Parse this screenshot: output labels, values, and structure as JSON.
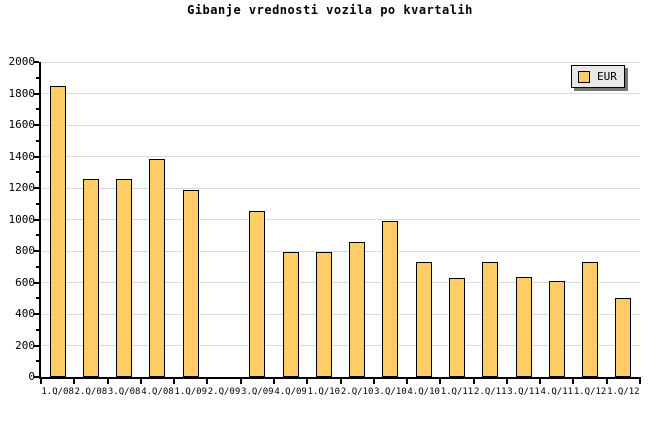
{
  "chart_data": {
    "type": "bar",
    "title": "Gibanje vrednosti vozila po kvartalih",
    "categories": [
      "1.Q/08",
      "2.Q/08",
      "3.Q/08",
      "4.Q/08",
      "1.Q/09",
      "2.Q/09",
      "3.Q/09",
      "4.Q/09",
      "1.Q/10",
      "2.Q/10",
      "3.Q/10",
      "4.Q/10",
      "1.Q/11",
      "2.Q/11",
      "3.Q/11",
      "4.Q/11",
      "1.Q/12",
      "1.Q/12"
    ],
    "series": [
      {
        "name": "EUR",
        "values": [
          1845,
          1255,
          1255,
          1385,
          1190,
          null,
          1055,
          795,
          795,
          860,
          990,
          730,
          630,
          730,
          635,
          610,
          730,
          500
        ]
      }
    ],
    "xlabel": "",
    "ylabel": "",
    "ylim": [
      0,
      2000
    ],
    "ytick_step": 200,
    "yminor_tick_step": 100,
    "ytick_labels": [
      "0",
      "200",
      "400",
      "600",
      "800",
      "1000",
      "1200",
      "1400",
      "1600",
      "1800",
      "2000"
    ],
    "grid": "horizontal",
    "legend": {
      "position": "top-right",
      "entries": [
        {
          "label": "EUR",
          "swatch_color": "#FFCC66"
        }
      ]
    },
    "colors": {
      "bar_fill": "#FFCC66",
      "bar_border": "#000000",
      "grid": "#DCDCDC",
      "axis": "#000000",
      "text": "#000000",
      "legend_bg": "#E8E8E8",
      "legend_shadow": "#777777",
      "background": "#FFFFFF"
    }
  }
}
